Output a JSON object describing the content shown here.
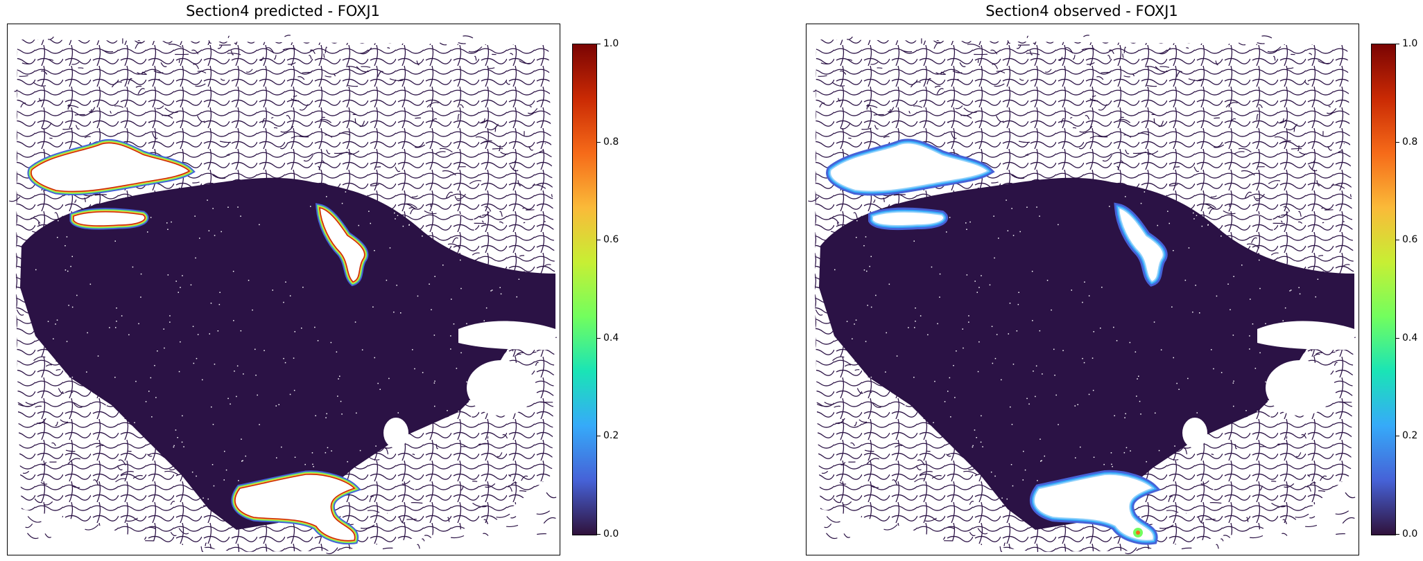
{
  "chart_data": [
    {
      "type": "heatmap",
      "title": "Section4 predicted - FOXJ1",
      "xlabel": "",
      "ylabel": "",
      "colormap": "turbo",
      "colorbar": {
        "range": [
          0.0,
          1.0
        ],
        "ticks": [
          "0.0",
          "0.2",
          "0.4",
          "0.6",
          "0.8",
          "1.0"
        ]
      },
      "axes_visible": false,
      "description_values": {
        "background_level": 0.0,
        "peak_level": 1.0
      }
    },
    {
      "type": "heatmap",
      "title": "Section4 observed - FOXJ1",
      "xlabel": "",
      "ylabel": "",
      "colormap": "turbo",
      "colorbar": {
        "range": [
          0.0,
          1.0
        ],
        "ticks": [
          "0.0",
          "0.2",
          "0.4",
          "0.6",
          "0.8",
          "1.0"
        ]
      },
      "axes_visible": false,
      "description_values": {
        "background_level": 0.0,
        "peak_level": 0.7
      }
    }
  ],
  "colors": {
    "tissue": "#2b1245",
    "background": "#ffffff",
    "turbo": [
      "#30123b",
      "#4662d7",
      "#36aaf9",
      "#1ae4b6",
      "#72fe5e",
      "#c7ef34",
      "#faba39",
      "#f66b19",
      "#ca2a04",
      "#7a0403"
    ]
  }
}
